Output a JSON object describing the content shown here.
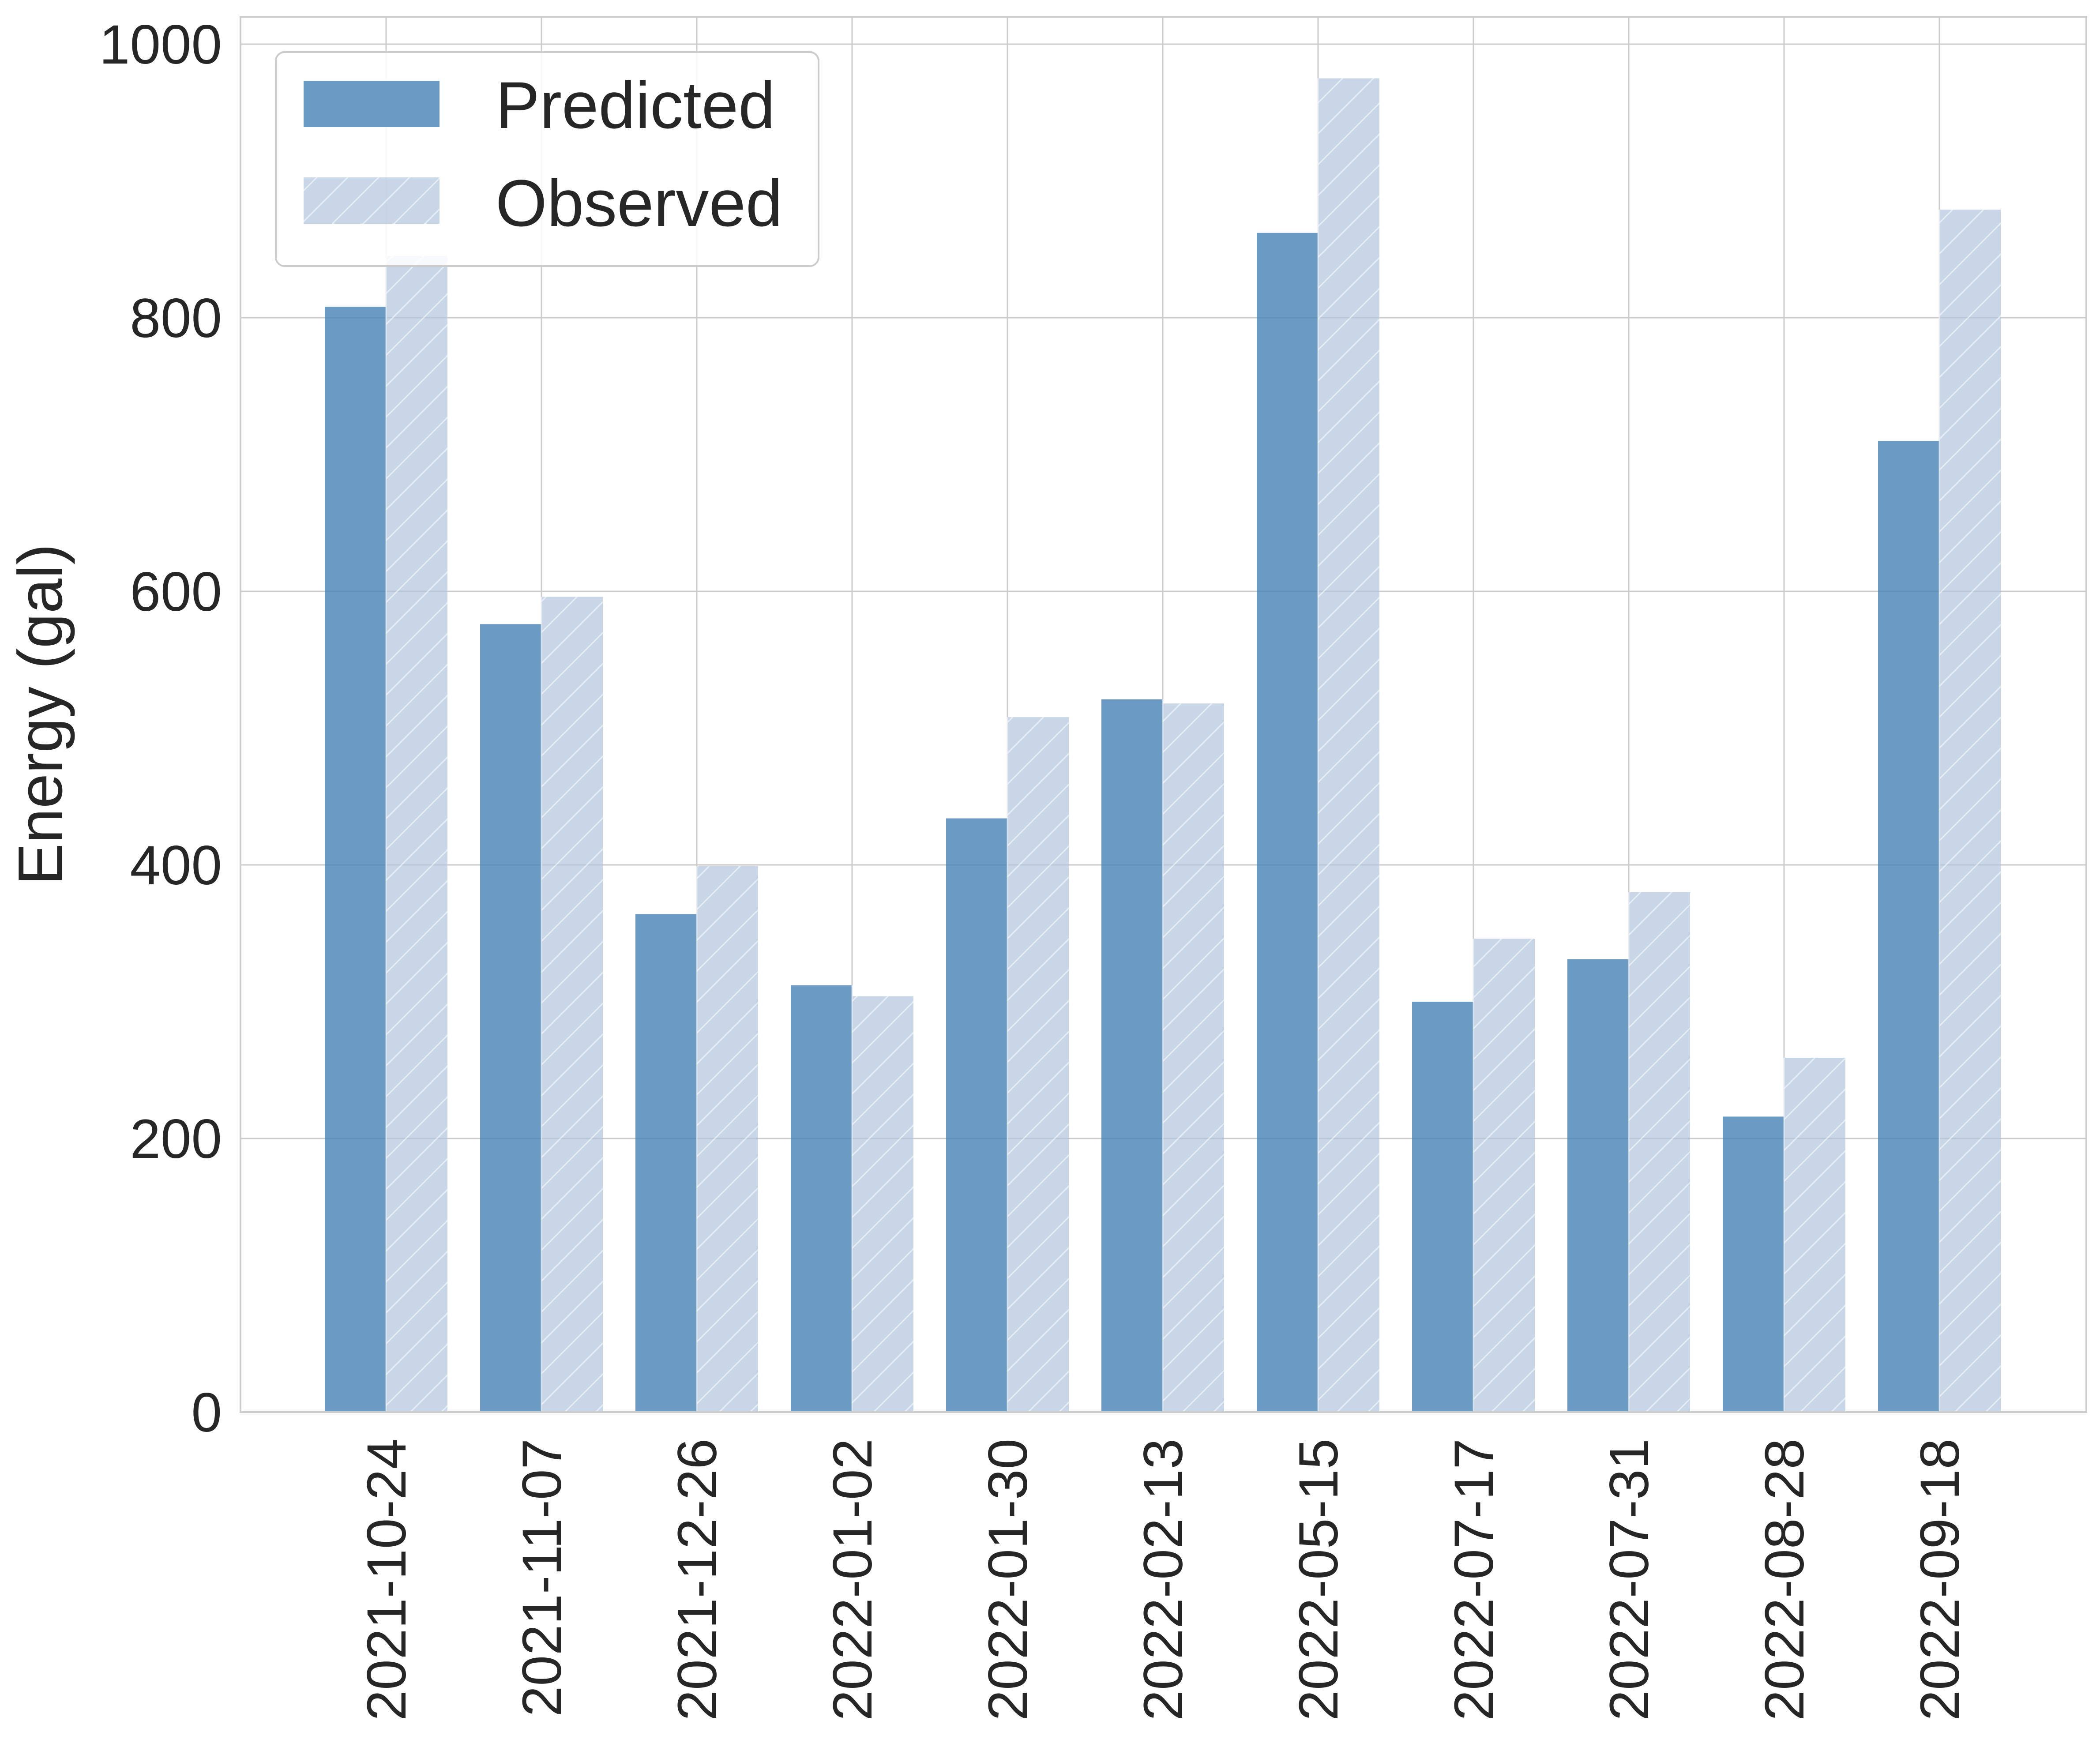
{
  "chart_data": {
    "type": "bar",
    "title": "",
    "xlabel": "",
    "ylabel": "Energy (gal)",
    "ylim": [
      0,
      1020
    ],
    "yticks": [
      0,
      200,
      400,
      600,
      800,
      1000
    ],
    "ytick_labels": [
      "0",
      "200",
      "400",
      "600",
      "800",
      "1000"
    ],
    "grid": true,
    "legend": {
      "placement": "top-left",
      "entries": [
        "Predicted",
        "Observed"
      ]
    },
    "categories": [
      "2021-10-24",
      "2021-11-07",
      "2021-12-26",
      "2022-01-02",
      "2022-01-30",
      "2022-02-13",
      "2022-05-15",
      "2022-07-17",
      "2022-07-31",
      "2022-08-28",
      "2022-09-18"
    ],
    "series": [
      {
        "name": "Predicted",
        "color": "#4682b4",
        "values": [
          808,
          576,
          364,
          312,
          434,
          521,
          862,
          300,
          331,
          216,
          710
        ]
      },
      {
        "name": "Observed",
        "color": "#b0c4de",
        "hatch": "diagonal",
        "values": [
          845,
          596,
          399,
          304,
          508,
          518,
          975,
          346,
          380,
          259,
          879
        ]
      }
    ]
  }
}
